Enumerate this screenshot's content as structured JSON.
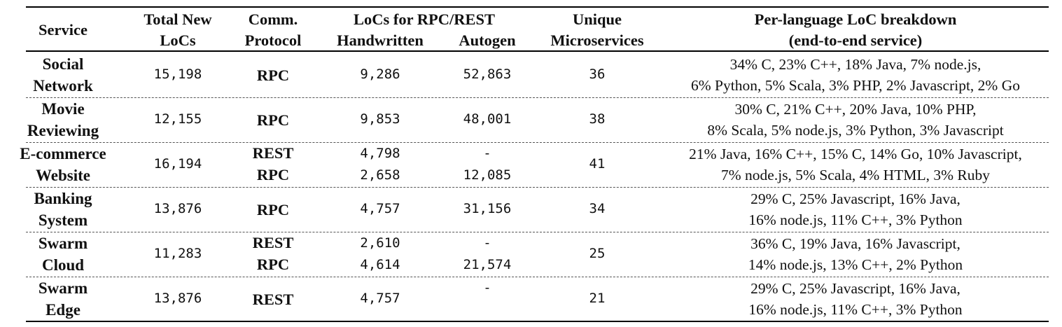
{
  "table": {
    "headers": {
      "service": "Service",
      "total_new_locs": [
        "Total New",
        "LoCs"
      ],
      "comm_protocol": [
        "Comm.",
        "Protocol"
      ],
      "locs_group": "LoCs for RPC/REST",
      "handwritten": "Handwritten",
      "autogen": "Autogen",
      "unique_microservices": [
        "Unique",
        "Microservices"
      ],
      "per_language": [
        "Per-language LoC breakdown",
        "(end-to-end service)"
      ]
    },
    "rows": [
      {
        "service": [
          "Social",
          "Network"
        ],
        "total": "15,198",
        "protocols": [
          "RPC"
        ],
        "handwritten": [
          "9,286"
        ],
        "autogen": [
          "52,863"
        ],
        "microservices": "36",
        "breakdown": [
          "34% C, 23% C++, 18% Java, 7% node.js,",
          "6% Python, 5% Scala, 3% PHP, 2% Javascript, 2% Go"
        ]
      },
      {
        "service": [
          "Movie",
          "Reviewing"
        ],
        "total": "12,155",
        "protocols": [
          "RPC"
        ],
        "handwritten": [
          "9,853"
        ],
        "autogen": [
          "48,001"
        ],
        "microservices": "38",
        "breakdown": [
          "30% C, 21% C++, 20% Java, 10% PHP,",
          "8% Scala, 5% node.js, 3% Python, 3% Javascript"
        ]
      },
      {
        "service": [
          "E-commerce",
          "Website"
        ],
        "total": "16,194",
        "protocols": [
          "REST",
          "RPC"
        ],
        "handwritten": [
          "4,798",
          "2,658"
        ],
        "autogen": [
          "-",
          "12,085"
        ],
        "microservices": "41",
        "breakdown": [
          "21% Java, 16% C++, 15% C, 14% Go, 10% Javascript,",
          "7% node.js, 5% Scala, 4% HTML, 3% Ruby"
        ]
      },
      {
        "service": [
          "Banking",
          "System"
        ],
        "total": "13,876",
        "protocols": [
          "RPC"
        ],
        "handwritten": [
          "4,757"
        ],
        "autogen": [
          "31,156"
        ],
        "microservices": "34",
        "breakdown": [
          "29% C, 25% Javascript, 16% Java,",
          "16% node.js, 11% C++, 3% Python"
        ]
      },
      {
        "service": [
          "Swarm",
          "Cloud"
        ],
        "total": "11,283",
        "protocols": [
          "REST",
          "RPC"
        ],
        "handwritten": [
          "2,610",
          "4,614"
        ],
        "autogen": [
          "-",
          "21,574"
        ],
        "microservices": "25",
        "breakdown": [
          "36% C, 19% Java, 16% Javascript,",
          "14% node.js, 13% C++, 2% Python"
        ]
      },
      {
        "service": [
          "Swarm",
          "Edge"
        ],
        "total": "13,876",
        "protocols": [
          "REST"
        ],
        "handwritten": [
          "4,757"
        ],
        "autogen": [
          "-"
        ],
        "microservices": "21",
        "breakdown": [
          "29% C, 25% Javascript, 16% Java,",
          "16% node.js, 11% C++, 3% Python"
        ]
      }
    ]
  }
}
